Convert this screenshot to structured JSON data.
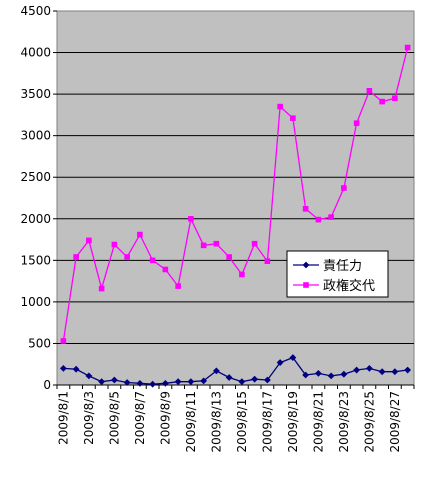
{
  "chart_data": {
    "type": "line",
    "title": "",
    "xlabel": "",
    "ylabel": "",
    "ylim": [
      0,
      4500
    ],
    "y_ticks": [
      0,
      500,
      1000,
      1500,
      2000,
      2500,
      3000,
      3500,
      4000,
      4500
    ],
    "grid": "horizontal",
    "plot_background": "#c0c0c0",
    "legend_position": "center-right",
    "x": [
      "2009/8/1",
      "2009/8/2",
      "2009/8/3",
      "2009/8/4",
      "2009/8/5",
      "2009/8/6",
      "2009/8/7",
      "2009/8/8",
      "2009/8/9",
      "2009/8/10",
      "2009/8/11",
      "2009/8/12",
      "2009/8/13",
      "2009/8/14",
      "2009/8/15",
      "2009/8/16",
      "2009/8/17",
      "2009/8/18",
      "2009/8/19",
      "2009/8/20",
      "2009/8/21",
      "2009/8/22",
      "2009/8/23",
      "2009/8/24",
      "2009/8/25",
      "2009/8/26",
      "2009/8/27",
      "2009/8/28"
    ],
    "x_tick_labels": [
      "2009/8/1",
      "2009/8/3",
      "2009/8/5",
      "2009/8/7",
      "2009/8/9",
      "2009/8/11",
      "2009/8/13",
      "2009/8/15",
      "2009/8/17",
      "2009/8/19",
      "2009/8/21",
      "2009/8/23",
      "2009/8/25",
      "2009/8/27"
    ],
    "series": [
      {
        "name": "責任力",
        "color": "#000080",
        "marker": "diamond",
        "values": [
          200,
          190,
          110,
          40,
          60,
          30,
          20,
          10,
          20,
          40,
          40,
          50,
          170,
          90,
          40,
          70,
          60,
          270,
          330,
          120,
          140,
          110,
          130,
          180,
          200,
          160,
          160,
          180
        ]
      },
      {
        "name": "政権交代",
        "color": "#ff00ff",
        "marker": "square",
        "values": [
          530,
          1540,
          1740,
          1160,
          1690,
          1540,
          1810,
          1500,
          1390,
          1190,
          2000,
          1680,
          1700,
          1540,
          1330,
          1700,
          1490,
          3350,
          3210,
          2120,
          1990,
          2020,
          2370,
          3150,
          3540,
          3410,
          3450,
          4060
        ]
      }
    ]
  }
}
